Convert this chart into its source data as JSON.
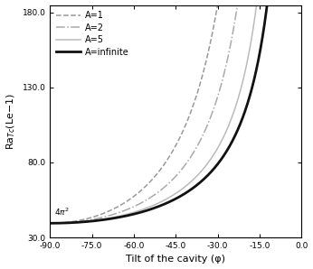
{
  "title": "",
  "xlabel": "Tilt of the cavity (φ)",
  "ylabel": "Ra$_{Tc}$(Le−1)",
  "xlim": [
    -90,
    0
  ],
  "ylim": [
    30,
    185
  ],
  "xticks": [
    -90.0,
    -75.0,
    -60.0,
    -45.0,
    -30.0,
    -15.0,
    0.0
  ],
  "xtick_labels": [
    "-90.0",
    "-75.0",
    "-60.0",
    "-45.0",
    "-30.0",
    "-15.0",
    "0.0"
  ],
  "yticks": [
    30.0,
    80.0,
    130.0,
    180.0
  ],
  "ytick_labels": [
    "30.0",
    "80.0",
    "130.0",
    "180.0"
  ],
  "annotation": "$4\\pi^2$",
  "series": [
    {
      "label": "A=1",
      "color": "#999999",
      "lw": 1.1,
      "ls": "--",
      "A": 1,
      "E": 0.9
    },
    {
      "label": "A=2",
      "color": "#aaaaaa",
      "lw": 1.1,
      "ls": "-.",
      "A": 2,
      "E": 0.38
    },
    {
      "label": "A=5",
      "color": "#bbbbbb",
      "lw": 1.1,
      "ls": "-",
      "A": 5,
      "E": 0.09
    },
    {
      "label": "A=infinite",
      "color": "#111111",
      "lw": 2.0,
      "ls": "-",
      "A": 9999,
      "E": 0.0
    }
  ],
  "background_color": "#ffffff",
  "legend_loc": "upper left",
  "legend_fontsize": 7,
  "tick_fontsize": 6.5,
  "label_fontsize": 8
}
